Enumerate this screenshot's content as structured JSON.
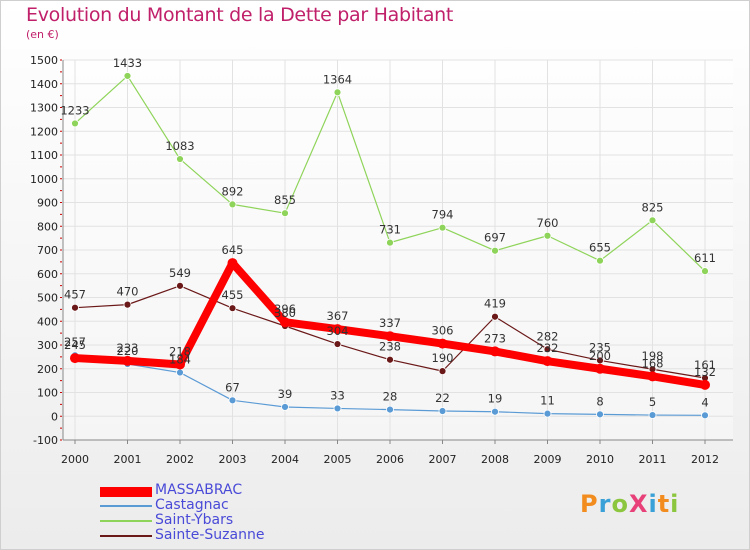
{
  "header": {
    "title": "Evolution du Montant de la Dette par Habitant",
    "subtitle": "(en €)"
  },
  "logo": {
    "text": "ProXiti",
    "colors": [
      "#f28c1e",
      "#3aa0d8",
      "#8cc63e",
      "#e8417a",
      "#3aa0d8",
      "#f28c1e",
      "#8cc63e"
    ]
  },
  "chart_data": {
    "type": "line",
    "title": "Evolution du Montant de la Dette par Habitant",
    "subtitle": "(en €)",
    "x": [
      2000,
      2001,
      2002,
      2003,
      2004,
      2005,
      2006,
      2007,
      2008,
      2009,
      2010,
      2011,
      2012
    ],
    "ylim": [
      -100,
      1500
    ],
    "yticks": [
      -100,
      0,
      100,
      200,
      300,
      400,
      500,
      600,
      700,
      800,
      900,
      1000,
      1100,
      1200,
      1300,
      1400,
      1500
    ],
    "grid": true,
    "legend_position": "bottom-left",
    "series": [
      {
        "name": "MASSABRAC",
        "color": "#ff0000",
        "values": [
          245,
          233,
          218,
          645,
          396,
          367,
          337,
          306,
          273,
          232,
          200,
          168,
          132
        ]
      },
      {
        "name": "Castagnac",
        "color": "#5b9bd5",
        "values": [
          257,
          220,
          184,
          67,
          39,
          33,
          28,
          22,
          19,
          11,
          8,
          5,
          4
        ]
      },
      {
        "name": "Saint-Ybars",
        "color": "#8fd45a",
        "values": [
          1233,
          1433,
          1083,
          892,
          855,
          1364,
          731,
          794,
          697,
          760,
          655,
          825,
          611
        ]
      },
      {
        "name": "Sainte-Suzanne",
        "color": "#6b1818",
        "values": [
          457,
          470,
          549,
          455,
          380,
          304,
          238,
          190,
          419,
          282,
          235,
          198,
          161
        ]
      }
    ]
  }
}
